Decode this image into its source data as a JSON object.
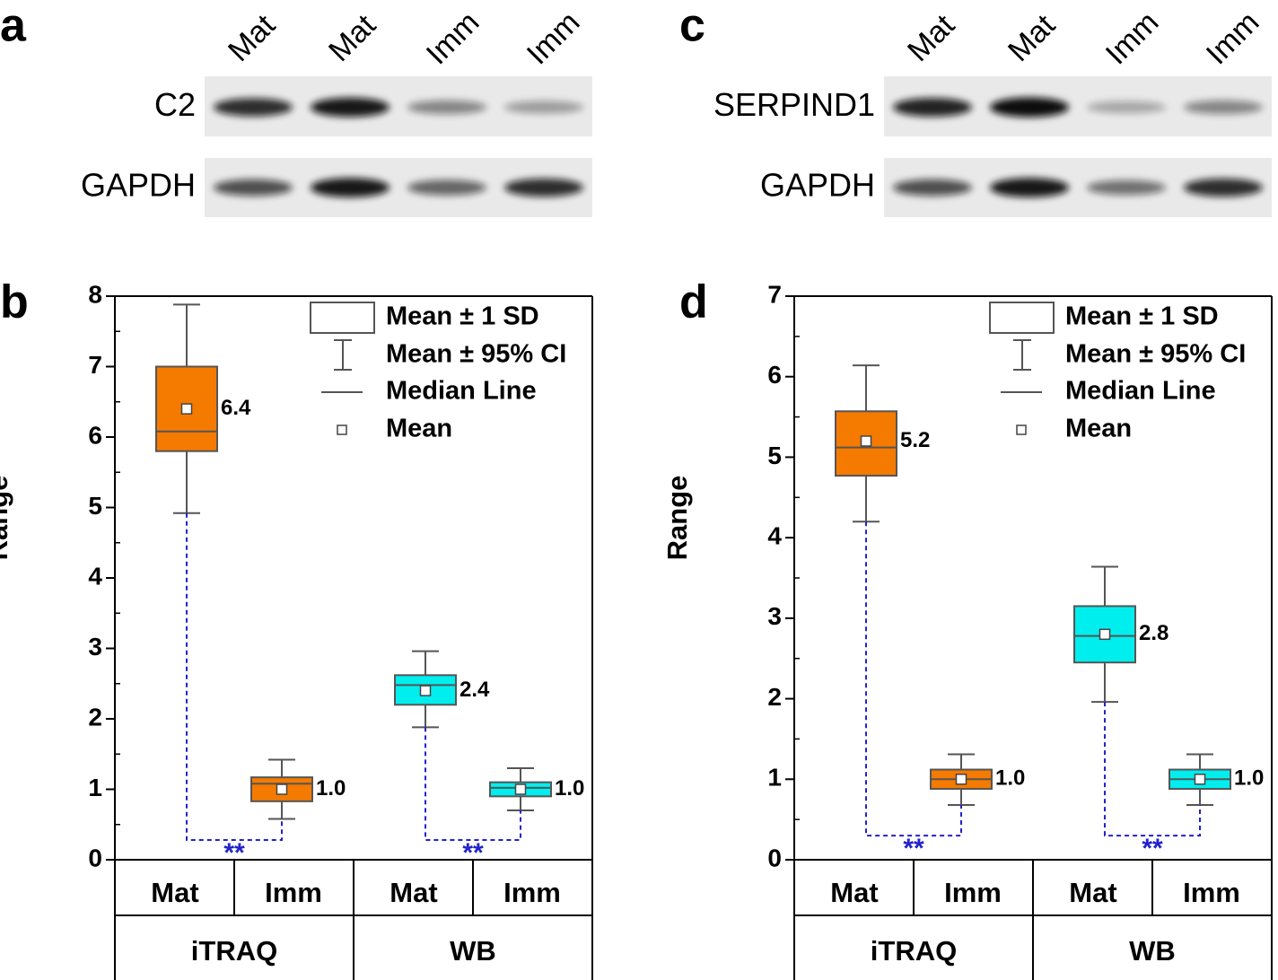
{
  "blots": [
    {
      "label": "a",
      "lanes": [
        "Mat",
        "Mat",
        "Imm",
        "Imm"
      ],
      "rows": [
        "C2",
        "GAPDH"
      ]
    },
    {
      "label": "c",
      "lanes": [
        "Mat",
        "Mat",
        "Imm",
        "Imm"
      ],
      "rows": [
        "SERPIND1",
        "GAPDH"
      ]
    }
  ],
  "chart_data": [
    {
      "type": "box",
      "label": "b",
      "ylabel": "Range",
      "ylim": [
        0,
        8
      ],
      "yticks": [
        0,
        1,
        2,
        3,
        4,
        5,
        6,
        7,
        8
      ],
      "legend": [
        "Mean ± 1 SD",
        "Mean ± 95% CI",
        "Median Line",
        "Mean"
      ],
      "groups": [
        {
          "name": "iTRAQ",
          "color": "#f57a00",
          "categories": [
            "Mat",
            "Imm"
          ],
          "q1": [
            5.8,
            0.83
          ],
          "q3": [
            7.0,
            1.17
          ],
          "median": [
            6.08,
            1.08
          ],
          "whisker_low": [
            4.92,
            0.58
          ],
          "whisker_high": [
            7.88,
            1.42
          ],
          "mean": [
            6.4,
            1
          ],
          "value_labels": [
            "6.4",
            "1.0"
          ],
          "significance": {
            "text": "**",
            "y": 0.28
          }
        },
        {
          "name": "WB",
          "color": "#00eeee",
          "categories": [
            "Mat",
            "Imm"
          ],
          "q1": [
            2.2,
            0.9
          ],
          "q3": [
            2.62,
            1.1
          ],
          "median": [
            2.48,
            1.02
          ],
          "whisker_low": [
            1.88,
            0.7
          ],
          "whisker_high": [
            2.96,
            1.3
          ],
          "mean": [
            2.4,
            1
          ],
          "value_labels": [
            "2.4",
            "1.0"
          ],
          "significance": {
            "text": "**",
            "y": 0.28
          }
        }
      ]
    },
    {
      "type": "box",
      "label": "d",
      "ylabel": "Range",
      "ylim": [
        0,
        7
      ],
      "yticks": [
        0,
        1,
        2,
        3,
        4,
        5,
        6,
        7
      ],
      "legend": [
        "Mean ± 1 SD",
        "Mean ± 95% CI",
        "Median Line",
        "Mean"
      ],
      "groups": [
        {
          "name": "iTRAQ",
          "color": "#f57a00",
          "categories": [
            "Mat",
            "Imm"
          ],
          "q1": [
            4.77,
            0.88
          ],
          "q3": [
            5.57,
            1.12
          ],
          "median": [
            5.12,
            1.0
          ],
          "whisker_low": [
            4.2,
            0.68
          ],
          "whisker_high": [
            6.14,
            1.31
          ],
          "mean": [
            5.2,
            1
          ],
          "value_labels": [
            "5.2",
            "1.0"
          ],
          "significance": {
            "text": "**",
            "y": 0.3
          }
        },
        {
          "name": "WB",
          "color": "#00eeee",
          "categories": [
            "Mat",
            "Imm"
          ],
          "q1": [
            2.45,
            0.88
          ],
          "q3": [
            3.15,
            1.12
          ],
          "median": [
            2.78,
            1.0
          ],
          "whisker_low": [
            1.96,
            0.68
          ],
          "whisker_high": [
            3.64,
            1.31
          ],
          "mean": [
            2.8,
            1
          ],
          "value_labels": [
            "2.8",
            "1.0"
          ],
          "significance": {
            "text": "**",
            "y": 0.3
          }
        }
      ]
    }
  ]
}
